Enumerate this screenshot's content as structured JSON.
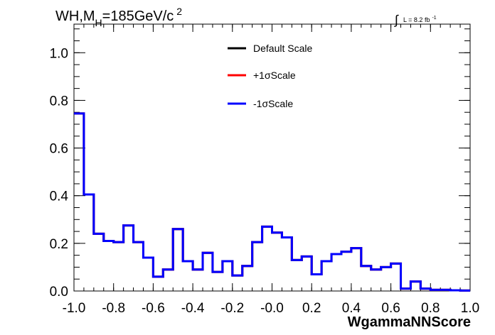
{
  "chart_data": {
    "type": "line",
    "title_parts": {
      "main": "WH,M",
      "sub": "H",
      "rest": "=185GeV/c",
      "sup": "2"
    },
    "lumi": {
      "integral": "∫",
      "text": "L = 8.2 fb",
      "sup": "-1"
    },
    "xlabel": "WgammaNNScore",
    "ylabel": "",
    "xlim": [
      -1.0,
      1.0
    ],
    "ylim": [
      0.0,
      1.12
    ],
    "x_ticks": [
      "-1.0",
      "-0.8",
      "-0.6",
      "-0.4",
      "-0.2",
      "-0.0",
      "0.2",
      "0.4",
      "0.6",
      "0.8",
      "1.0"
    ],
    "x_tick_values": [
      -1.0,
      -0.8,
      -0.6,
      -0.4,
      -0.2,
      0.0,
      0.2,
      0.4,
      0.6,
      0.8,
      1.0
    ],
    "y_ticks": [
      "0.0",
      "0.2",
      "0.4",
      "0.6",
      "0.8",
      "1.0"
    ],
    "y_tick_values": [
      0.0,
      0.2,
      0.4,
      0.6,
      0.8,
      1.0
    ],
    "grid": false,
    "legend_placement": "top-center",
    "bin_edges_start": -1.0,
    "bin_width": 0.05,
    "series": [
      {
        "name": "Default Scale",
        "color": "#000000",
        "values": [
          0.745,
          0.405,
          0.24,
          0.21,
          0.205,
          0.275,
          0.205,
          0.14,
          0.06,
          0.09,
          0.26,
          0.125,
          0.09,
          0.16,
          0.08,
          0.125,
          0.065,
          0.105,
          0.205,
          0.27,
          0.245,
          0.225,
          0.13,
          0.145,
          0.07,
          0.125,
          0.155,
          0.165,
          0.18,
          0.105,
          0.09,
          0.1,
          0.115,
          0.01,
          0.04,
          0.01,
          0.005,
          0.005,
          0.003,
          0.002
        ]
      },
      {
        "name": "+1σScale",
        "color": "#ff0000",
        "values": [
          0.745,
          0.405,
          0.24,
          0.21,
          0.205,
          0.275,
          0.205,
          0.14,
          0.06,
          0.09,
          0.26,
          0.125,
          0.09,
          0.16,
          0.08,
          0.125,
          0.065,
          0.105,
          0.205,
          0.27,
          0.245,
          0.225,
          0.13,
          0.145,
          0.07,
          0.125,
          0.155,
          0.165,
          0.18,
          0.105,
          0.09,
          0.1,
          0.115,
          0.01,
          0.04,
          0.01,
          0.005,
          0.005,
          0.003,
          0.002
        ]
      },
      {
        "name": "-1σScale",
        "color": "#0000ff",
        "values": [
          0.745,
          0.405,
          0.24,
          0.21,
          0.205,
          0.275,
          0.205,
          0.14,
          0.06,
          0.09,
          0.26,
          0.125,
          0.09,
          0.16,
          0.08,
          0.125,
          0.065,
          0.105,
          0.205,
          0.27,
          0.245,
          0.225,
          0.13,
          0.145,
          0.07,
          0.125,
          0.155,
          0.165,
          0.18,
          0.105,
          0.09,
          0.1,
          0.115,
          0.01,
          0.04,
          0.01,
          0.005,
          0.005,
          0.003,
          0.002
        ]
      }
    ]
  }
}
